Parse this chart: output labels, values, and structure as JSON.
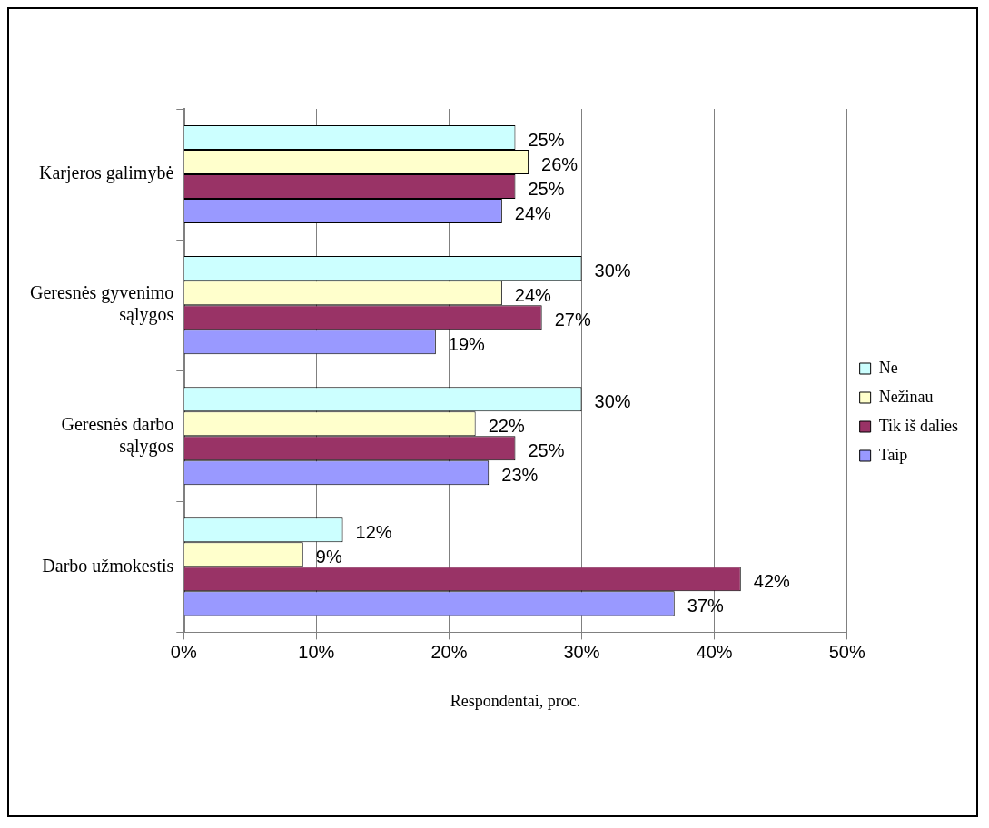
{
  "chart_data": {
    "type": "bar",
    "orientation": "horizontal",
    "xlabel": "Respondentai, proc.",
    "categories": [
      "Karjeros galimybė",
      "Geresnės gyvenimo sąlygos",
      "Geresnės darbo sąlygos",
      "Darbo užmokestis"
    ],
    "series": [
      {
        "name": "Ne",
        "color": "#ccffff",
        "values": [
          25,
          30,
          30,
          12
        ],
        "value_labels": [
          "25%",
          "30%",
          "30%",
          "12%"
        ]
      },
      {
        "name": "Nežinau",
        "color": "#ffffcc",
        "values": [
          26,
          24,
          22,
          9
        ],
        "value_labels": [
          "26%",
          "24%",
          "22%",
          "9%"
        ]
      },
      {
        "name": "Tik iš dalies",
        "color": "#993366",
        "values": [
          25,
          27,
          25,
          42
        ],
        "value_labels": [
          "25%",
          "27%",
          "25%",
          "42%"
        ]
      },
      {
        "name": "Taip",
        "color": "#9999ff",
        "values": [
          24,
          19,
          23,
          37
        ],
        "value_labels": [
          "24%",
          "19%",
          "23%",
          "37%"
        ]
      }
    ],
    "xlim": [
      0,
      50
    ],
    "xticks": [
      {
        "value": 0,
        "label": "0%"
      },
      {
        "value": 10,
        "label": "10%"
      },
      {
        "value": 20,
        "label": "20%"
      },
      {
        "value": 30,
        "label": "30%"
      },
      {
        "value": 40,
        "label": "40%"
      },
      {
        "value": 50,
        "label": "50%"
      }
    ],
    "grid": "x",
    "legend": "right"
  }
}
